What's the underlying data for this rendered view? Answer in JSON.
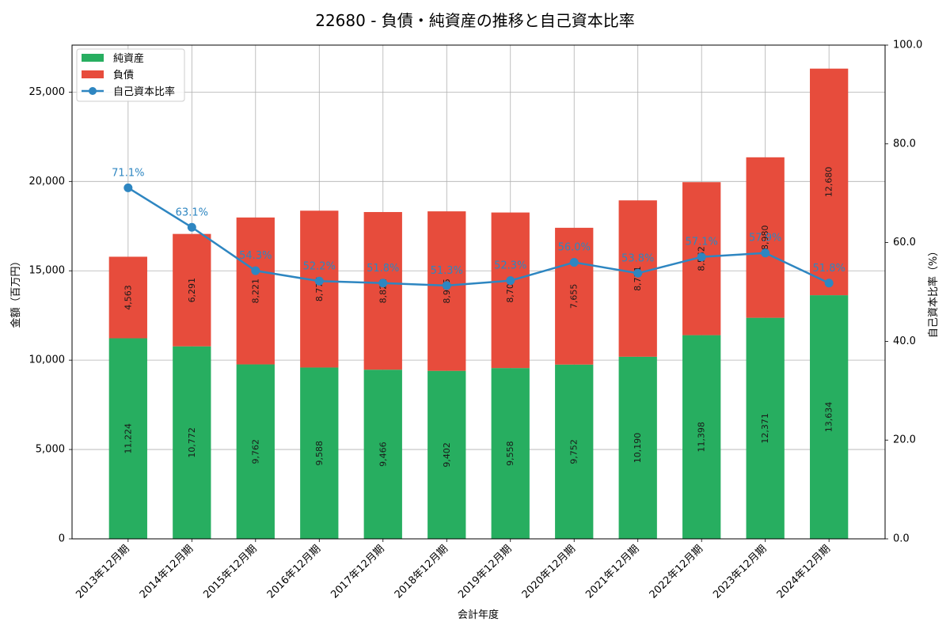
{
  "chart_data": {
    "type": "bar",
    "stacked": true,
    "title": "22680 - 負債・純資産の推移と自己資本比率",
    "xlabel": "会計年度",
    "ylabel": "金額（百万円）",
    "y2label": "自己資本比率（%）",
    "categories": [
      "2013年12月期",
      "2014年12月期",
      "2015年12月期",
      "2016年12月期",
      "2017年12月期",
      "2018年12月期",
      "2019年12月期",
      "2020年12月期",
      "2021年12月期",
      "2022年12月期",
      "2023年12月期",
      "2024年12月期"
    ],
    "series": [
      {
        "name": "純資産",
        "type": "bar",
        "axis": "left",
        "color": "#27ae60",
        "values": [
          11224,
          10772,
          9762,
          9588,
          9466,
          9402,
          9558,
          9752,
          10190,
          11398,
          12371,
          13634
        ]
      },
      {
        "name": "負債",
        "type": "bar",
        "axis": "left",
        "color": "#e74c3c",
        "values": [
          4563,
          6291,
          8221,
          8776,
          8822,
          8925,
          8704,
          7655,
          8751,
          8562,
          8980,
          12680
        ]
      },
      {
        "name": "自己資本比率",
        "type": "line",
        "axis": "right",
        "color": "#2e86c1",
        "values": [
          71.1,
          63.1,
          54.3,
          52.2,
          51.8,
          51.3,
          52.3,
          56.0,
          53.8,
          57.1,
          57.9,
          51.8
        ]
      }
    ],
    "ylim": [
      0,
      27630
    ],
    "y2lim": [
      0,
      100
    ],
    "yticks": [
      0,
      5000,
      10000,
      15000,
      20000,
      25000
    ],
    "y2ticks": [
      0,
      20,
      40,
      60,
      80,
      100
    ],
    "grid": true,
    "legend": "top-left",
    "data_labels": true
  }
}
